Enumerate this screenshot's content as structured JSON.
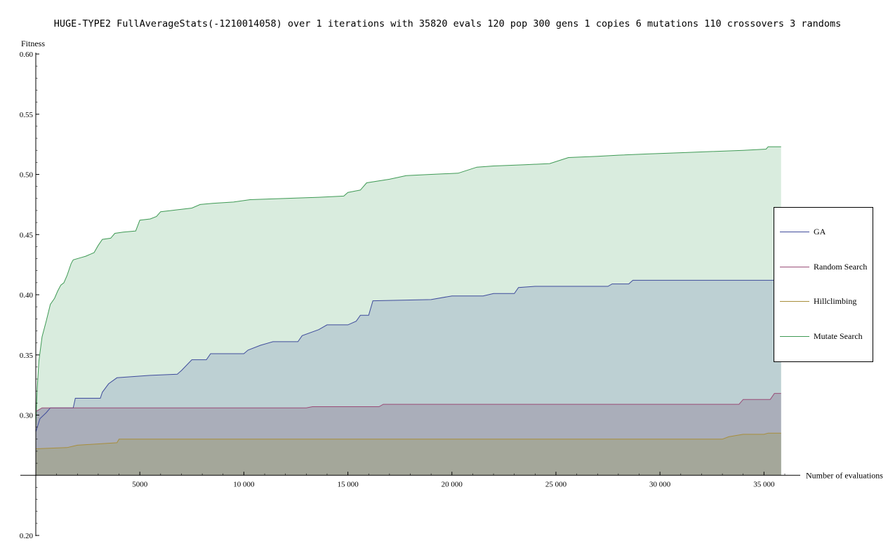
{
  "chart_data": {
    "type": "area",
    "title": "HUGE-TYPE2 FullAverageStats(-1210014058) over 1 iterations with 35820 evals 120 pop 300 gens 1 copies 6 mutations 110 crossovers 3 randoms",
    "xlabel": "Number of evaluations",
    "ylabel": "Fitness",
    "xlim": [
      0,
      36000
    ],
    "ylim": [
      0.2,
      0.6
    ],
    "x_axis_at": 0.25,
    "xticks": [
      5000,
      10000,
      15000,
      20000,
      25000,
      30000,
      35000
    ],
    "xtick_labels": [
      "5000",
      "10 000",
      "15 000",
      "20 000",
      "25 000",
      "30 000",
      "35 000"
    ],
    "yticks": [
      0.2,
      0.3,
      0.35,
      0.4,
      0.45,
      0.5,
      0.55,
      0.6
    ],
    "ytick_labels": [
      "0.20",
      "0.30",
      "0.35",
      "0.40",
      "0.45",
      "0.50",
      "0.55",
      "0.60"
    ],
    "legend_position": "right",
    "grid": false,
    "series": [
      {
        "name": "Mutate Search",
        "color": "#3f9a55",
        "fill": "#d9ecde",
        "points": [
          [
            0,
            0.29
          ],
          [
            60,
            0.32
          ],
          [
            150,
            0.345
          ],
          [
            300,
            0.365
          ],
          [
            500,
            0.378
          ],
          [
            700,
            0.392
          ],
          [
            900,
            0.397
          ],
          [
            1050,
            0.403
          ],
          [
            1200,
            0.408
          ],
          [
            1350,
            0.41
          ],
          [
            1500,
            0.416
          ],
          [
            1700,
            0.426
          ],
          [
            1800,
            0.429
          ],
          [
            2200,
            0.431
          ],
          [
            2400,
            0.432
          ],
          [
            2800,
            0.435
          ],
          [
            3000,
            0.441
          ],
          [
            3200,
            0.446
          ],
          [
            3600,
            0.447
          ],
          [
            3800,
            0.451
          ],
          [
            4200,
            0.452
          ],
          [
            4800,
            0.453
          ],
          [
            5000,
            0.462
          ],
          [
            5500,
            0.463
          ],
          [
            5800,
            0.465
          ],
          [
            6000,
            0.469
          ],
          [
            6500,
            0.47
          ],
          [
            7000,
            0.471
          ],
          [
            7500,
            0.472
          ],
          [
            7900,
            0.475
          ],
          [
            8500,
            0.476
          ],
          [
            9500,
            0.477
          ],
          [
            10300,
            0.479
          ],
          [
            12000,
            0.48
          ],
          [
            13600,
            0.481
          ],
          [
            14800,
            0.482
          ],
          [
            15000,
            0.485
          ],
          [
            15600,
            0.487
          ],
          [
            15900,
            0.493
          ],
          [
            17000,
            0.496
          ],
          [
            17800,
            0.499
          ],
          [
            19000,
            0.5
          ],
          [
            20300,
            0.501
          ],
          [
            21200,
            0.506
          ],
          [
            22000,
            0.507
          ],
          [
            23500,
            0.508
          ],
          [
            24700,
            0.509
          ],
          [
            25600,
            0.514
          ],
          [
            27000,
            0.515
          ],
          [
            28000,
            0.516
          ],
          [
            29500,
            0.517
          ],
          [
            31000,
            0.518
          ],
          [
            32500,
            0.519
          ],
          [
            34000,
            0.52
          ],
          [
            35100,
            0.521
          ],
          [
            35200,
            0.523
          ],
          [
            35820,
            0.523
          ]
        ]
      },
      {
        "name": "GA",
        "color": "#3f4c9c",
        "fill": "#bdd0d3",
        "points": [
          [
            0,
            0.286
          ],
          [
            200,
            0.297
          ],
          [
            500,
            0.302
          ],
          [
            700,
            0.306
          ],
          [
            1800,
            0.306
          ],
          [
            1900,
            0.314
          ],
          [
            3100,
            0.314
          ],
          [
            3200,
            0.319
          ],
          [
            3500,
            0.326
          ],
          [
            3900,
            0.331
          ],
          [
            5500,
            0.333
          ],
          [
            6800,
            0.334
          ],
          [
            7000,
            0.337
          ],
          [
            7500,
            0.346
          ],
          [
            8200,
            0.346
          ],
          [
            8400,
            0.351
          ],
          [
            10000,
            0.351
          ],
          [
            10200,
            0.354
          ],
          [
            10800,
            0.358
          ],
          [
            11400,
            0.361
          ],
          [
            12600,
            0.361
          ],
          [
            12800,
            0.366
          ],
          [
            13600,
            0.371
          ],
          [
            14000,
            0.375
          ],
          [
            15000,
            0.375
          ],
          [
            15400,
            0.378
          ],
          [
            15600,
            0.383
          ],
          [
            16000,
            0.383
          ],
          [
            16200,
            0.395
          ],
          [
            19000,
            0.396
          ],
          [
            20000,
            0.399
          ],
          [
            21500,
            0.399
          ],
          [
            22000,
            0.401
          ],
          [
            23000,
            0.401
          ],
          [
            23200,
            0.406
          ],
          [
            24000,
            0.407
          ],
          [
            27500,
            0.407
          ],
          [
            27700,
            0.409
          ],
          [
            28500,
            0.409
          ],
          [
            28700,
            0.412
          ],
          [
            35820,
            0.412
          ]
        ]
      },
      {
        "name": "Random Search",
        "color": "#9a4d78",
        "fill": "#aaaeba",
        "points": [
          [
            0,
            0.303
          ],
          [
            300,
            0.306
          ],
          [
            13000,
            0.306
          ],
          [
            13300,
            0.307
          ],
          [
            16500,
            0.307
          ],
          [
            16700,
            0.309
          ],
          [
            33800,
            0.309
          ],
          [
            34000,
            0.313
          ],
          [
            35300,
            0.313
          ],
          [
            35500,
            0.318
          ],
          [
            35820,
            0.318
          ]
        ]
      },
      {
        "name": "Hillclimbing",
        "color": "#a88e3c",
        "fill": "#a4a79a",
        "points": [
          [
            0,
            0.272
          ],
          [
            1500,
            0.273
          ],
          [
            2000,
            0.275
          ],
          [
            3900,
            0.277
          ],
          [
            4000,
            0.28
          ],
          [
            33000,
            0.28
          ],
          [
            33300,
            0.282
          ],
          [
            34000,
            0.284
          ],
          [
            35000,
            0.284
          ],
          [
            35200,
            0.285
          ],
          [
            35820,
            0.285
          ]
        ]
      }
    ]
  }
}
